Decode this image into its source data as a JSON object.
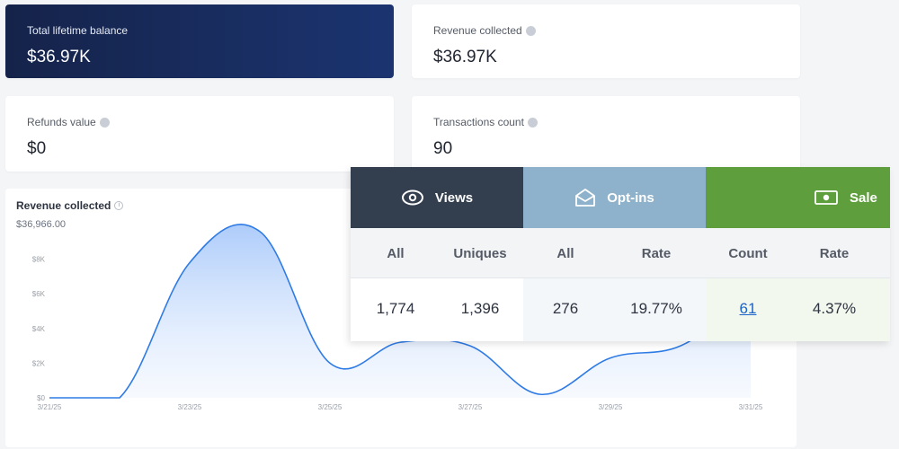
{
  "stats": {
    "total_balance": {
      "label": "Total lifetime balance",
      "value": "$36.97K"
    },
    "revenue_collected": {
      "label": "Revenue collected",
      "value": "$36.97K"
    },
    "refunds_value": {
      "label": "Refunds value",
      "value": "$0"
    },
    "transactions_count": {
      "label": "Transactions count",
      "value": "90"
    }
  },
  "chart_card": {
    "title": "Revenue collected",
    "subtitle": "$36,966.00"
  },
  "chart_data": {
    "type": "area",
    "title": "Revenue collected",
    "subtitle": "$36,966.00",
    "x": [
      "3/21/25",
      "3/22/25",
      "3/23/25",
      "3/24/25",
      "3/25/25",
      "3/26/25",
      "3/27/25",
      "3/28/25",
      "3/29/25",
      "3/30/25",
      "3/31/25"
    ],
    "values": [
      0,
      0,
      7800,
      9600,
      2000,
      3200,
      3000,
      200,
      2300,
      3000,
      5800
    ],
    "x_ticks": [
      "3/21/25",
      "3/23/25",
      "3/25/25",
      "3/27/25",
      "3/29/25",
      "3/31/25"
    ],
    "y_ticks": [
      "$0",
      "$2K",
      "$4K",
      "$6K",
      "$8K"
    ],
    "ylim": [
      0,
      10000
    ],
    "grid": false,
    "line_color": "#2f7be5",
    "fill_color": "#bcd6fb"
  },
  "overlay": {
    "views": {
      "label": "Views",
      "icon": "eye-icon",
      "color": "#333e4f"
    },
    "optins": {
      "label": "Opt-ins",
      "icon": "envelope-open-icon",
      "color": "#8eb2cb"
    },
    "sales": {
      "label": "Sale",
      "icon": "cash-icon",
      "color": "#5e9e3c"
    },
    "columns": [
      "All",
      "Uniques",
      "All",
      "Rate",
      "Count",
      "Rate"
    ],
    "row": [
      "1,774",
      "1,396",
      "276",
      "19.77%",
      "61",
      "4.37%"
    ]
  }
}
